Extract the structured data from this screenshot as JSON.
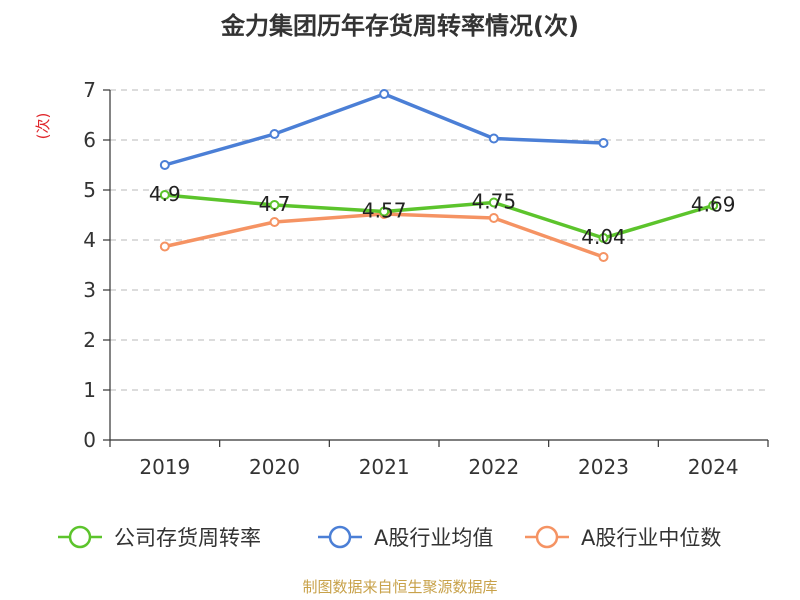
{
  "chart_data": {
    "type": "line",
    "title": "金力集团历年存货周转率情况(次)",
    "ylabel": "(次)",
    "xlabel": "",
    "categories": [
      "2019",
      "2020",
      "2021",
      "2022",
      "2023",
      "2024"
    ],
    "ylim": [
      0,
      7
    ],
    "yticks": [
      0,
      1,
      2,
      3,
      4,
      5,
      6,
      7
    ],
    "grid": true,
    "legend_position": "bottom",
    "series": [
      {
        "name": "公司存货周转率",
        "color": "#5cc42c",
        "values": [
          4.9,
          4.7,
          4.57,
          4.75,
          4.04,
          4.69
        ],
        "labels": [
          "4.9",
          "4.7",
          "4.57",
          "4.75",
          "4.04",
          "4.69"
        ],
        "show_labels": true
      },
      {
        "name": "A股行业均值",
        "color": "#4b7fd6",
        "values": [
          5.5,
          6.12,
          6.92,
          6.03,
          5.94,
          null
        ],
        "show_labels": false
      },
      {
        "name": "A股行业中位数",
        "color": "#f59363",
        "values": [
          3.87,
          4.36,
          4.52,
          4.44,
          3.66,
          null
        ],
        "show_labels": false
      }
    ],
    "source": "制图数据来自恒生聚源数据库"
  }
}
